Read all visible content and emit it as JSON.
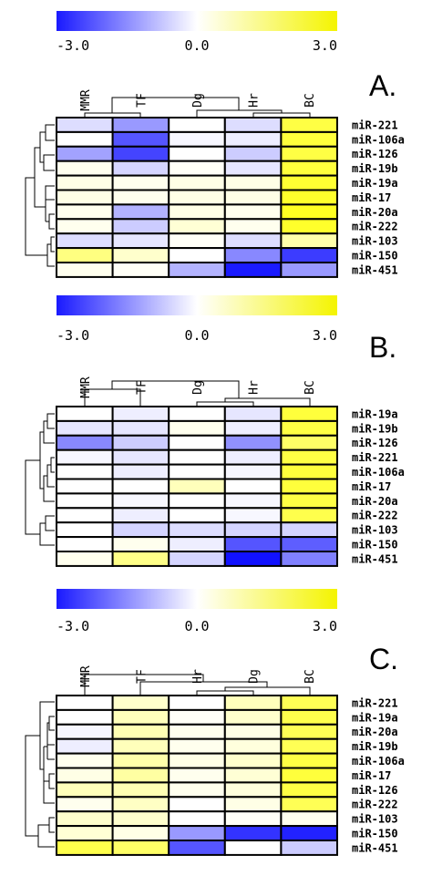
{
  "chart_data": [
    {
      "type": "heatmap",
      "panel_label": "A.",
      "scale": {
        "min": -3.0,
        "mid": 0.0,
        "max": 3.0,
        "min_label": "-3.0",
        "mid_label": "0.0",
        "max_label": "3.0",
        "low_color": "#0000ff",
        "mid_color": "#ffffff",
        "high_color": "#ffff00"
      },
      "columns": [
        "MMR",
        "TF",
        "Dg",
        "Hr",
        "BC"
      ],
      "rows": [
        "miR-221",
        "miR-106a",
        "miR-126",
        "miR-19b",
        "miR-19a",
        "miR-17",
        "miR-20a",
        "miR-222",
        "miR-103",
        "miR-150",
        "miR-451"
      ],
      "values": [
        [
          -0.4,
          -1.2,
          0.0,
          -0.4,
          2.2
        ],
        [
          0.0,
          -2.0,
          -0.1,
          -0.2,
          2.3
        ],
        [
          -1.1,
          -2.2,
          0.0,
          -0.6,
          2.2
        ],
        [
          0.2,
          -0.5,
          0.1,
          -0.3,
          2.3
        ],
        [
          0.3,
          0.2,
          0.3,
          0.3,
          2.4
        ],
        [
          0.3,
          0.2,
          0.3,
          0.3,
          2.5
        ],
        [
          0.2,
          -0.9,
          0.3,
          0.2,
          2.6
        ],
        [
          0.2,
          -0.6,
          0.5,
          0.2,
          2.5
        ],
        [
          -0.4,
          -0.3,
          0.1,
          -0.4,
          1.0
        ],
        [
          1.5,
          0.6,
          0.0,
          -1.4,
          -2.3
        ],
        [
          0.2,
          0.1,
          -0.9,
          -2.7,
          -1.2
        ]
      ]
    },
    {
      "type": "heatmap",
      "panel_label": "B.",
      "scale": {
        "min": -3.0,
        "mid": 0.0,
        "max": 3.0,
        "min_label": "-3.0",
        "mid_label": "0.0",
        "max_label": "3.0",
        "low_color": "#0000ff",
        "mid_color": "#ffffff",
        "high_color": "#ffff00"
      },
      "columns": [
        "MMR",
        "TF",
        "Dg",
        "Hr",
        "BC"
      ],
      "rows": [
        "miR-19a",
        "miR-19b",
        "miR-126",
        "miR-221",
        "miR-106a",
        "miR-17",
        "miR-20a",
        "miR-222",
        "miR-103",
        "miR-150",
        "miR-451"
      ],
      "values": [
        [
          0.0,
          -0.2,
          0.0,
          -0.3,
          2.3
        ],
        [
          -0.3,
          -0.3,
          0.2,
          -0.2,
          2.2
        ],
        [
          -1.4,
          -0.6,
          0.0,
          -1.3,
          1.8
        ],
        [
          -0.1,
          -0.3,
          0.0,
          -0.2,
          2.2
        ],
        [
          0.0,
          -0.2,
          0.0,
          -0.1,
          2.3
        ],
        [
          0.0,
          0.0,
          0.8,
          0.0,
          2.3
        ],
        [
          0.0,
          -0.1,
          0.0,
          -0.1,
          2.2
        ],
        [
          0.0,
          -0.2,
          0.0,
          -0.1,
          2.1
        ],
        [
          0.0,
          -0.5,
          -0.4,
          -0.5,
          -0.5
        ],
        [
          0.0,
          0.2,
          -0.2,
          -2.0,
          -1.9
        ],
        [
          0.2,
          1.4,
          -0.5,
          -2.8,
          -1.5
        ]
      ]
    },
    {
      "type": "heatmap",
      "panel_label": "C.",
      "scale": {
        "min": -3.0,
        "mid": 0.0,
        "max": 3.0,
        "min_label": "-3.0",
        "mid_label": "0.0",
        "max_label": "3.0",
        "low_color": "#0000ff",
        "mid_color": "#ffffff",
        "high_color": "#ffff00"
      },
      "columns": [
        "MMR",
        "TF",
        "Hr",
        "Dg",
        "BC"
      ],
      "rows": [
        "miR-221",
        "miR-19a",
        "miR-20a",
        "miR-19b",
        "miR-106a",
        "miR-17",
        "miR-126",
        "miR-222",
        "miR-103",
        "miR-150",
        "miR-451"
      ],
      "values": [
        [
          0.0,
          0.6,
          0.0,
          0.8,
          2.0
        ],
        [
          0.0,
          0.8,
          0.1,
          0.6,
          2.1
        ],
        [
          -0.1,
          0.9,
          0.2,
          0.3,
          2.0
        ],
        [
          -0.2,
          0.8,
          0.2,
          0.4,
          2.0
        ],
        [
          0.2,
          1.0,
          0.3,
          0.6,
          2.2
        ],
        [
          0.3,
          1.1,
          0.2,
          0.5,
          2.3
        ],
        [
          0.8,
          0.9,
          0.2,
          0.4,
          2.2
        ],
        [
          0.2,
          0.7,
          0.0,
          0.3,
          2.0
        ],
        [
          0.6,
          0.6,
          0.0,
          0.1,
          0.2
        ],
        [
          0.5,
          0.3,
          -1.2,
          -2.4,
          -2.6
        ],
        [
          2.1,
          1.8,
          -2.0,
          0.0,
          -0.6
        ]
      ]
    }
  ]
}
